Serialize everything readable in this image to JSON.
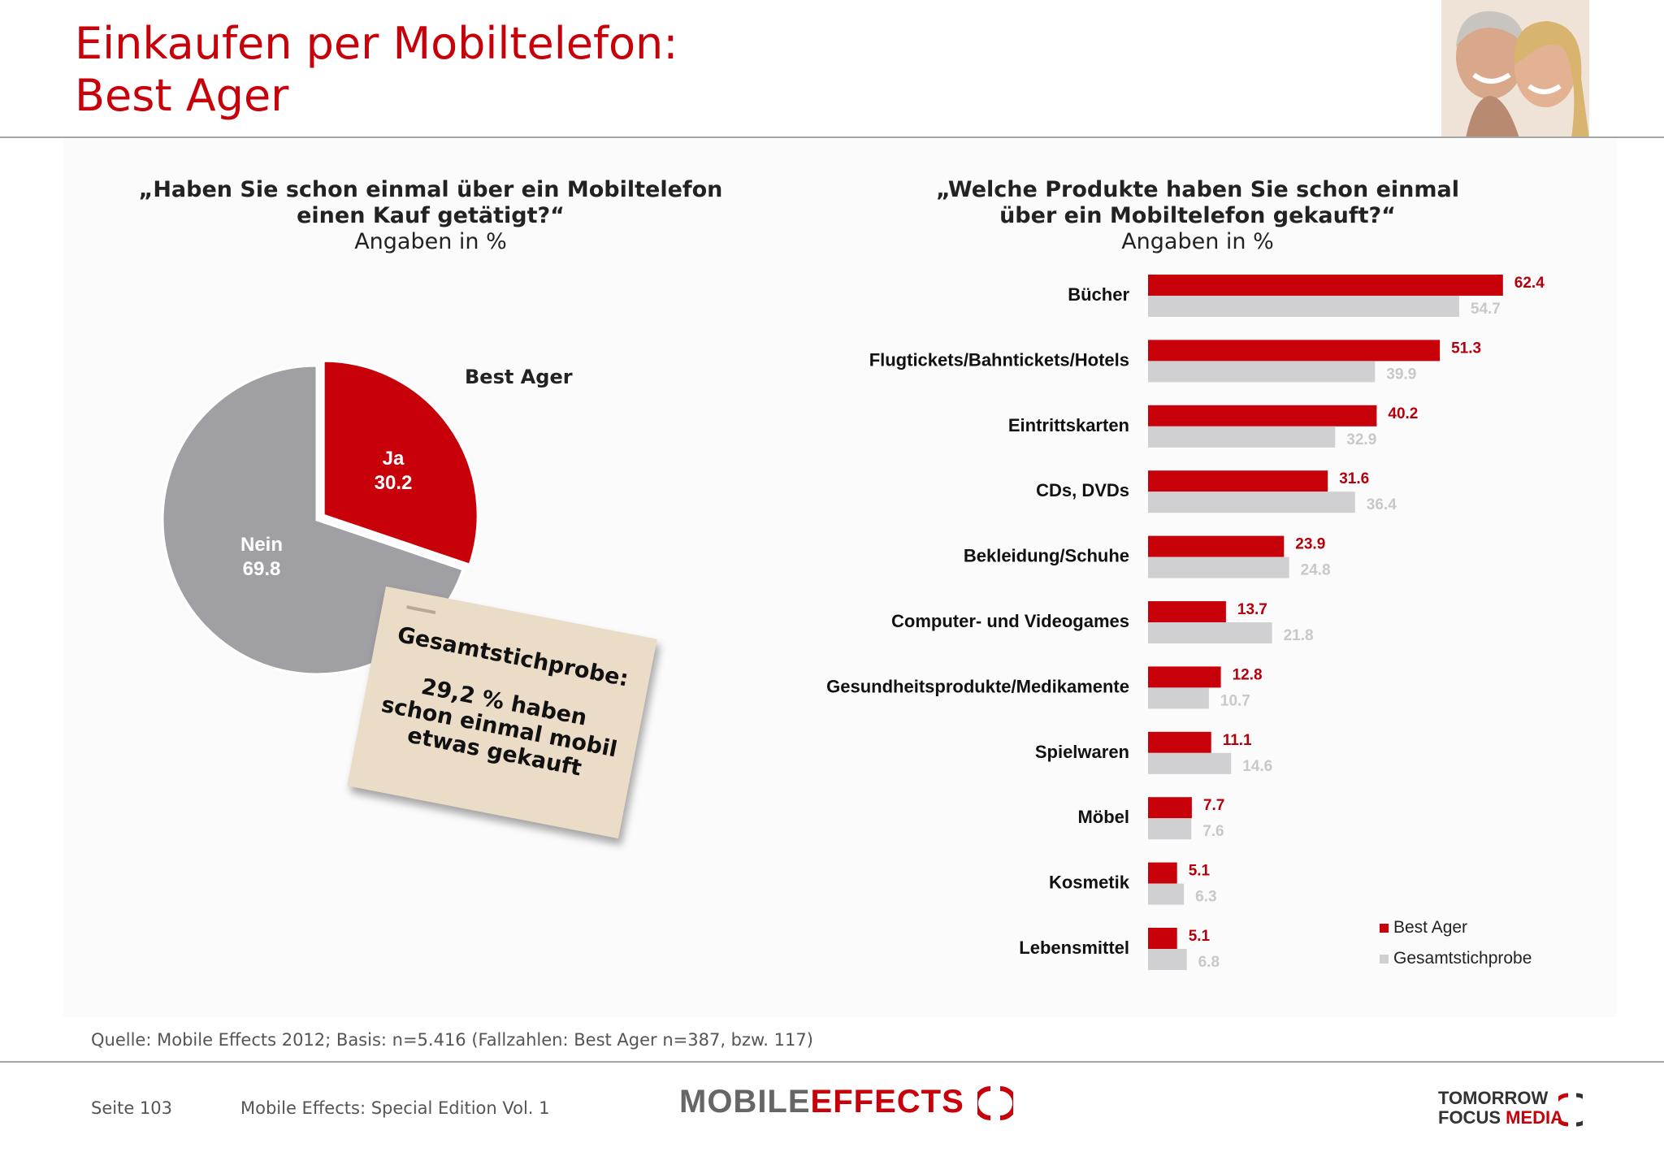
{
  "header": {
    "title_line1": "Einkaufen per Mobiltelefon:",
    "title_line2": "Best Ager"
  },
  "left_question": {
    "line1": "„Haben Sie schon einmal über ein Mobiltelefon",
    "line2": "einen Kauf getätigt?“",
    "subtitle": "Angaben in %"
  },
  "right_question": {
    "line1": "„Welche Produkte haben Sie schon einmal",
    "line2": "über ein Mobiltelefon gekauft?“",
    "subtitle": "Angaben in %"
  },
  "note": {
    "heading": "Gesamtstichprobe:",
    "line1": "29,2 % haben",
    "line2": "schon einmal mobil",
    "line3": "etwas gekauft"
  },
  "chart_data": [
    {
      "type": "pie",
      "title": "Best Ager",
      "slices": [
        {
          "label": "Ja",
          "value": 30.2,
          "color": "#c8000a"
        },
        {
          "label": "Nein",
          "value": 69.8,
          "color": "#a09fa3"
        }
      ]
    },
    {
      "type": "bar",
      "orientation": "horizontal",
      "categories": [
        "Bücher",
        "Flugtickets/Bahntickets/Hotels",
        "Eintrittskarten",
        "CDs, DVDs",
        "Bekleidung/Schuhe",
        "Computer- und Videogames",
        "Gesundheitsprodukte/Medikamente",
        "Spielwaren",
        "Möbel",
        "Kosmetik",
        "Lebensmittel"
      ],
      "series": [
        {
          "name": "Best Ager",
          "color": "#c8000a",
          "label_color": "#b4000a",
          "values": [
            62.4,
            51.3,
            40.2,
            31.6,
            23.9,
            13.7,
            12.8,
            11.1,
            7.7,
            5.1,
            5.1
          ]
        },
        {
          "name": "Gesamtstichprobe",
          "color": "#d0d0d2",
          "label_color": "#c8c8ca",
          "values": [
            54.7,
            39.9,
            32.9,
            36.4,
            24.8,
            21.8,
            10.7,
            14.6,
            7.6,
            6.3,
            6.8
          ]
        }
      ],
      "legend_position": "bottom-right"
    }
  ],
  "footer": {
    "source": "Quelle: Mobile Effects 2012; Basis: n=5.416 (Fallzahlen: Best Ager n=387, bzw. 117)",
    "page": "Seite 103",
    "publication": "Mobile Effects: Special Edition Vol. 1",
    "logo_left_part1": "MOBILE",
    "logo_left_part2": "EFFECTS",
    "logo_right_line1": "TOMORROW",
    "logo_right_line2a": "FOCUS ",
    "logo_right_line2b": "MEDIA"
  }
}
